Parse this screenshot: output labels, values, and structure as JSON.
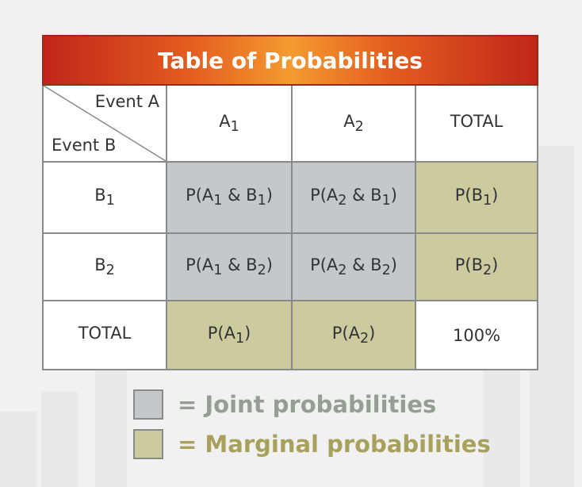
{
  "title": "Table of Probabilities",
  "corner": {
    "event_a": "Event A",
    "event_b": "Event B"
  },
  "colors": {
    "header_red": "#c0261a",
    "header_orange": "#f49b2f",
    "joint": "#c5c8cb",
    "marginal": "#cccb9f",
    "joint_text": "#959d95",
    "marginal_text": "#a8a15c"
  },
  "columns": [
    {
      "main": "A",
      "sub": "1"
    },
    {
      "main": "A",
      "sub": "2"
    },
    {
      "main": "TOTAL",
      "sub": ""
    }
  ],
  "rows": [
    {
      "label": {
        "main": "B",
        "sub": "1"
      },
      "cells": [
        {
          "type": "joint",
          "p": "P(",
          "a": "A",
          "as": "1",
          "amp": " & ",
          "b": "B",
          "bs": "1",
          "q": ")"
        },
        {
          "type": "joint",
          "p": "P(",
          "a": "A",
          "as": "2",
          "amp": " & ",
          "b": "B",
          "bs": "1",
          "q": ")"
        },
        {
          "type": "marginal",
          "p": "P(",
          "a": "B",
          "as": "1",
          "amp": "",
          "b": "",
          "bs": "",
          "q": ")"
        }
      ]
    },
    {
      "label": {
        "main": "B",
        "sub": "2"
      },
      "cells": [
        {
          "type": "joint",
          "p": "P(",
          "a": "A",
          "as": "1",
          "amp": " & ",
          "b": "B",
          "bs": "2",
          "q": ")"
        },
        {
          "type": "joint",
          "p": "P(",
          "a": "A",
          "as": "2",
          "amp": " & ",
          "b": "B",
          "bs": "2",
          "q": ")"
        },
        {
          "type": "marginal",
          "p": "P(",
          "a": "B",
          "as": "2",
          "amp": "",
          "b": "",
          "bs": "",
          "q": ")"
        }
      ]
    },
    {
      "label": {
        "main": "TOTAL",
        "sub": ""
      },
      "cells": [
        {
          "type": "marginal",
          "p": "P(",
          "a": "A",
          "as": "1",
          "amp": "",
          "b": "",
          "bs": "",
          "q": ")"
        },
        {
          "type": "marginal",
          "p": "P(",
          "a": "A",
          "as": "2",
          "amp": "",
          "b": "",
          "bs": "",
          "q": ")"
        },
        {
          "type": "plain",
          "p": "100%",
          "a": "",
          "as": "",
          "amp": "",
          "b": "",
          "bs": "",
          "q": ""
        }
      ]
    }
  ],
  "legend": [
    {
      "type": "joint",
      "label": "= Joint probabilities"
    },
    {
      "type": "marginal",
      "label": "= Marginal probabilities"
    }
  ]
}
